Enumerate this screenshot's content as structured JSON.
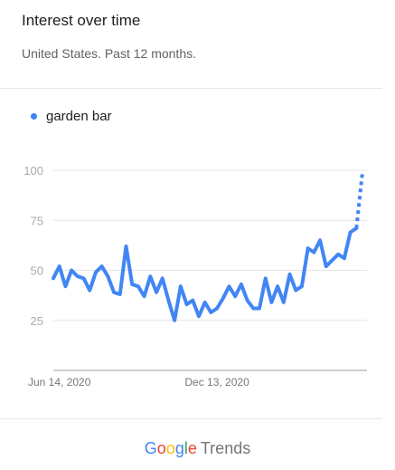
{
  "header": {
    "title": "Interest over time",
    "subtitle": "United States. Past 12 months."
  },
  "legend": {
    "label": "garden bar"
  },
  "colors": {
    "series": "#4285f4",
    "grid": "#e5e5e5",
    "axis": "#bdbdbd"
  },
  "footer": {
    "brand_google": "Google",
    "brand_trends": "Trends",
    "google_letter_colors": [
      "#4285f4",
      "#ea4335",
      "#fbbc05",
      "#4285f4",
      "#34a853",
      "#ea4335"
    ]
  },
  "chart_data": {
    "type": "line",
    "title": "Interest over time",
    "subtitle": "United States. Past 12 months.",
    "xlabel": "",
    "ylabel": "",
    "ylim": [
      0,
      100
    ],
    "yticks": [
      25,
      50,
      75,
      100
    ],
    "ytick_labels": [
      "25",
      "50",
      "75",
      "100"
    ],
    "xtick_labels": [
      "Jun 14, 2020",
      "Dec 13, 2020"
    ],
    "xtick_index": [
      1,
      27
    ],
    "grid": true,
    "legend_position": "top-left",
    "series": [
      {
        "name": "garden bar",
        "values": [
          46,
          52,
          42,
          50,
          47,
          46,
          40,
          49,
          52,
          47,
          39,
          38,
          62,
          43,
          42,
          37,
          47,
          39,
          46,
          35,
          25,
          42,
          33,
          35,
          27,
          34,
          29,
          31,
          36,
          42,
          37,
          43,
          35,
          31,
          31,
          46,
          34,
          42,
          34,
          48,
          40,
          42,
          61,
          59,
          65,
          52,
          55,
          58,
          56,
          69,
          71,
          99
        ],
        "partial_last_point": true
      }
    ]
  }
}
